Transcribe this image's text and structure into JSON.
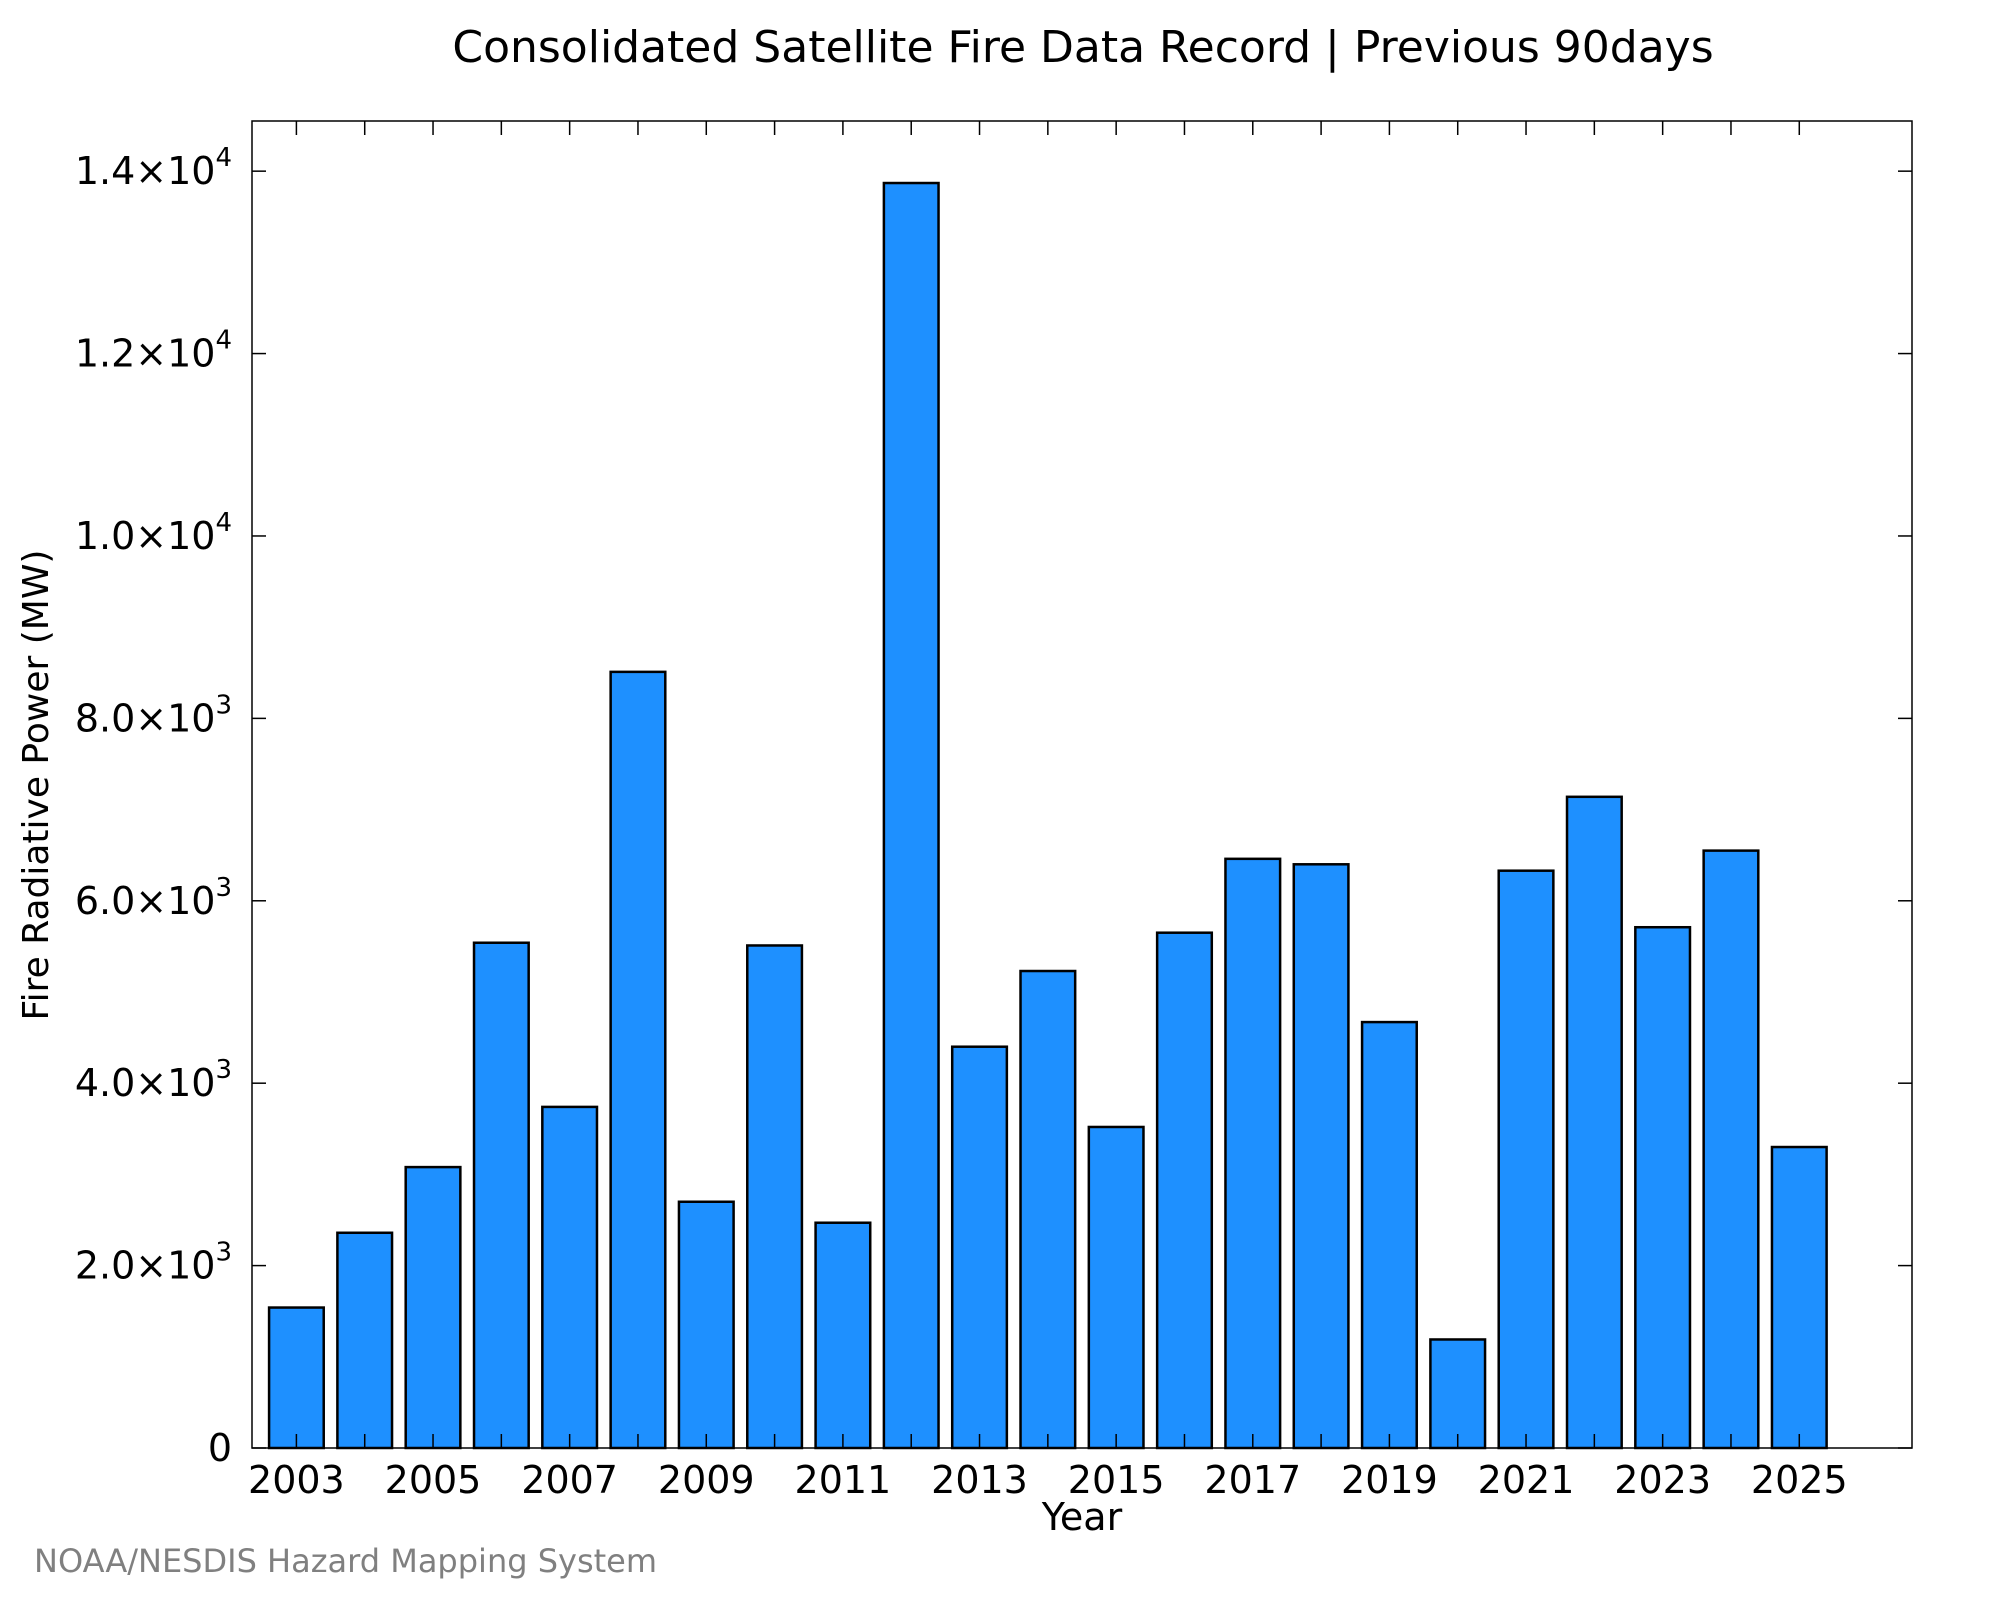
{
  "chart_data": {
    "type": "bar",
    "title": "Consolidated Satellite Fire Data Record | Previous 90days",
    "xlabel": "Year",
    "ylabel": "Fire Radiative Power (MW)",
    "categories": [
      "2003",
      "2004",
      "2005",
      "2006",
      "2007",
      "2008",
      "2009",
      "2010",
      "2011",
      "2012",
      "2013",
      "2014",
      "2015",
      "2016",
      "2017",
      "2018",
      "2019",
      "2020",
      "2021",
      "2022",
      "2023",
      "2024",
      "2025"
    ],
    "values": [
      1540,
      2360,
      3080,
      5540,
      3740,
      8510,
      2700,
      5510,
      2470,
      13870,
      4400,
      5230,
      3520,
      5650,
      6460,
      6400,
      4670,
      1190,
      6330,
      7140,
      5710,
      6550,
      3300
    ],
    "ylim": [
      0,
      14550
    ],
    "xlim": [
      2002.35,
      2026.65
    ],
    "x_tick_labels": [
      "2003",
      "2005",
      "2007",
      "2009",
      "2011",
      "2013",
      "2015",
      "2017",
      "2019",
      "2021",
      "2023",
      "2025"
    ],
    "y_ticks": [
      {
        "value": 0,
        "mantissa": "0",
        "exponent": ""
      },
      {
        "value": 2000,
        "mantissa": "2.0×10",
        "exponent": "3"
      },
      {
        "value": 4000,
        "mantissa": "4.0×10",
        "exponent": "3"
      },
      {
        "value": 6000,
        "mantissa": "6.0×10",
        "exponent": "3"
      },
      {
        "value": 8000,
        "mantissa": "8.0×10",
        "exponent": "3"
      },
      {
        "value": 10000,
        "mantissa": "1.0×10",
        "exponent": "4"
      },
      {
        "value": 12000,
        "mantissa": "1.2×10",
        "exponent": "4"
      },
      {
        "value": 14000,
        "mantissa": "1.4×10",
        "exponent": "4"
      }
    ],
    "bar_color": "#1e90ff",
    "bar_edge_color": "#000000",
    "grid": false,
    "legend": "none"
  },
  "credit": "NOAA/NESDIS Hazard Mapping System"
}
